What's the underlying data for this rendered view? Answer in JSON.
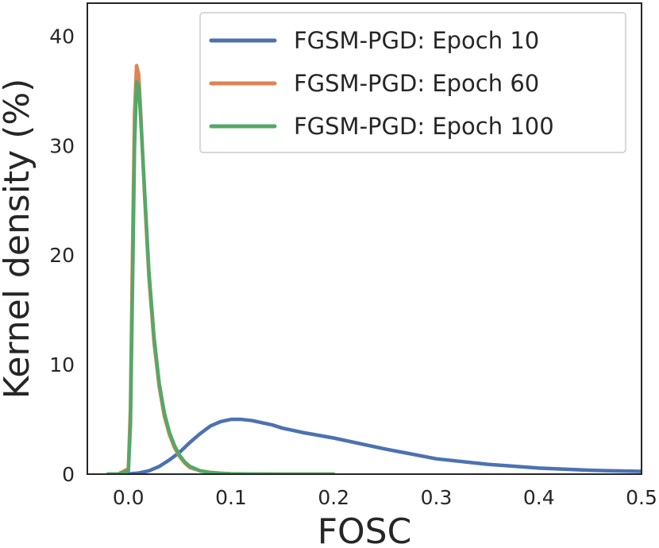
{
  "chart_data": {
    "type": "line",
    "title": "",
    "xlabel": "FOSC",
    "ylabel": "Kernel density (%)",
    "xlim": [
      -0.04,
      0.5
    ],
    "ylim": [
      0,
      43
    ],
    "xticks": [
      0.0,
      0.1,
      0.2,
      0.3,
      0.4,
      0.5
    ],
    "xtick_labels": [
      "0.0",
      "0.1",
      "0.2",
      "0.3",
      "0.4",
      "0.5"
    ],
    "yticks": [
      0,
      10,
      20,
      30,
      40
    ],
    "ytick_labels": [
      "0",
      "10",
      "20",
      "30",
      "40"
    ],
    "grid": false,
    "legend_position": "top-right",
    "series": [
      {
        "name": "FGSM-PGD: Epoch 10",
        "color": "#4c72b0",
        "x": [
          -0.02,
          0.0,
          0.01,
          0.02,
          0.03,
          0.04,
          0.05,
          0.06,
          0.07,
          0.08,
          0.09,
          0.1,
          0.11,
          0.12,
          0.13,
          0.14,
          0.15,
          0.17,
          0.2,
          0.25,
          0.3,
          0.35,
          0.4,
          0.45,
          0.5
        ],
        "y": [
          0.0,
          0.02,
          0.1,
          0.3,
          0.7,
          1.3,
          2.0,
          2.9,
          3.7,
          4.4,
          4.8,
          5.0,
          5.0,
          4.9,
          4.7,
          4.5,
          4.2,
          3.8,
          3.3,
          2.3,
          1.4,
          0.9,
          0.55,
          0.35,
          0.25
        ]
      },
      {
        "name": "FGSM-PGD: Epoch 60",
        "color": "#dd8452",
        "x": [
          -0.02,
          -0.01,
          0.0,
          0.002,
          0.004,
          0.006,
          0.008,
          0.01,
          0.012,
          0.014,
          0.016,
          0.018,
          0.02,
          0.025,
          0.03,
          0.035,
          0.04,
          0.045,
          0.05,
          0.055,
          0.06,
          0.07,
          0.08,
          0.09,
          0.1,
          0.12,
          0.15,
          0.2
        ],
        "y": [
          0.0,
          0.0,
          0.5,
          6.0,
          20.0,
          33.0,
          37.3,
          36.5,
          33.0,
          29.0,
          25.0,
          21.5,
          18.0,
          12.0,
          8.0,
          5.3,
          3.6,
          2.4,
          1.6,
          1.0,
          0.6,
          0.3,
          0.15,
          0.08,
          0.04,
          0.01,
          0.0,
          0.0
        ]
      },
      {
        "name": "FGSM-PGD: Epoch 100",
        "color": "#55a868",
        "x": [
          -0.02,
          -0.01,
          0.0,
          0.002,
          0.004,
          0.006,
          0.008,
          0.01,
          0.012,
          0.014,
          0.016,
          0.018,
          0.02,
          0.025,
          0.03,
          0.035,
          0.04,
          0.045,
          0.05,
          0.055,
          0.06,
          0.07,
          0.08,
          0.09,
          0.1,
          0.12,
          0.15,
          0.2
        ],
        "y": [
          0.0,
          0.0,
          0.3,
          4.5,
          17.0,
          30.0,
          35.8,
          35.5,
          32.5,
          29.0,
          25.5,
          22.0,
          18.5,
          12.5,
          8.3,
          5.6,
          3.8,
          2.6,
          1.7,
          1.1,
          0.7,
          0.3,
          0.15,
          0.07,
          0.03,
          0.01,
          0.0,
          0.0
        ]
      }
    ]
  }
}
